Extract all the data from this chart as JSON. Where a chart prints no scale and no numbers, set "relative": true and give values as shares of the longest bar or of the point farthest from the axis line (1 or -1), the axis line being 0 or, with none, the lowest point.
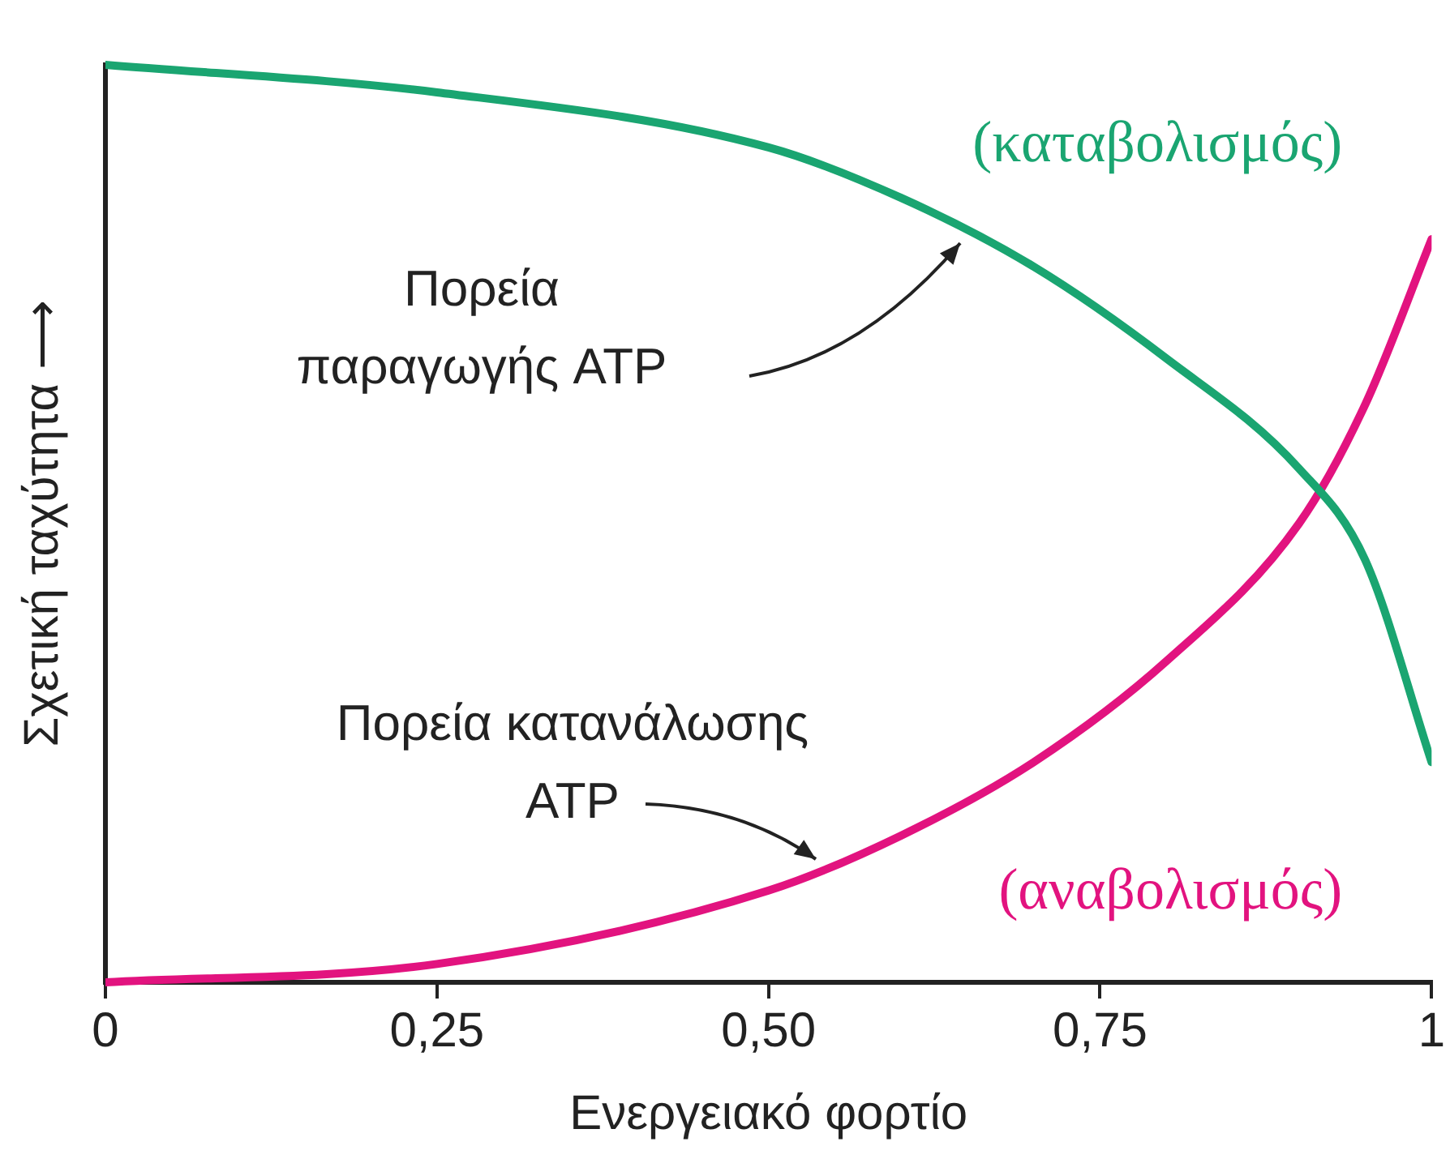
{
  "chart_data": {
    "type": "line",
    "xlabel": "Ενεργειακό φορτίο",
    "ylabel": "Σχετική ταχύτητα ⟶",
    "relative": true,
    "xlim": [
      0,
      1
    ],
    "xticks": [
      0,
      {
        "value": 0.25,
        "label": "0,25"
      },
      {
        "value": 0.5,
        "label": "0,50"
      },
      {
        "value": 0.75,
        "label": "0,75"
      },
      1
    ],
    "x": [
      0,
      0.25,
      0.5,
      0.6,
      0.7,
      0.8,
      0.9,
      0.95,
      1
    ],
    "series": [
      {
        "name": "(καταβολισμός)",
        "color": "#1aa571",
        "values": [
          1.0,
          0.97,
          0.91,
          0.855,
          0.78,
          0.68,
          0.56,
          0.46,
          0.24
        ]
      },
      {
        "name": "(αναβολισμός)",
        "color": "#e2137f",
        "values": [
          0,
          0.02,
          0.1,
          0.16,
          0.24,
          0.35,
          0.5,
          0.63,
          0.81
        ]
      }
    ],
    "annotations": [
      "Πορεία\nπαραγωγής ATP",
      "Πορεία κατανάλωσης\nATP"
    ],
    "grid": false,
    "legend": false,
    "marker": "none",
    "line_style": "solid"
  }
}
